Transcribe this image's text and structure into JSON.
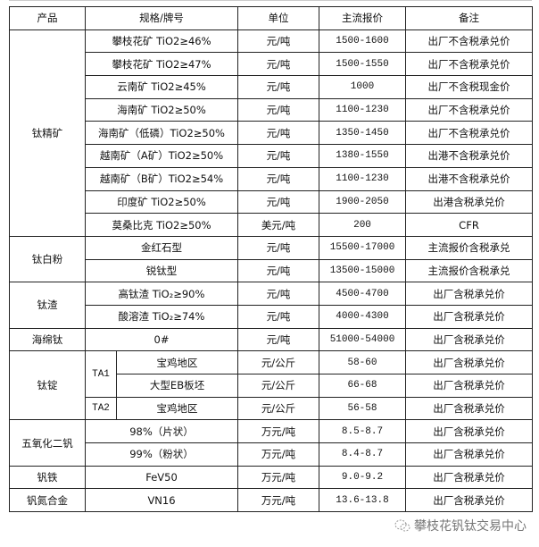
{
  "header": {
    "product": "产品",
    "spec": "规格/牌号",
    "unit": "单位",
    "price": "主流报价",
    "note": "备注"
  },
  "groups": [
    {
      "product": "钛精矿",
      "rows": [
        {
          "spec": "攀枝花矿 TiO2≥46%",
          "unit": "元/吨",
          "price": "1500-1600",
          "note": "出厂不含税承兑价"
        },
        {
          "spec": "攀枝花矿 TiO2≥47%",
          "unit": "元/吨",
          "price": "1500-1550",
          "note": "出厂不含税承兑价"
        },
        {
          "spec": "云南矿 TiO2≥45%",
          "unit": "元/吨",
          "price": "1000",
          "note": "出厂不含税现金价"
        },
        {
          "spec": "海南矿 TiO2≥50%",
          "unit": "元/吨",
          "price": "1100-1230",
          "note": "出厂不含税承兑价"
        },
        {
          "spec": "海南矿（低磷）TiO2≥50%",
          "unit": "元/吨",
          "price": "1350-1450",
          "note": "出厂不含税承兑价"
        },
        {
          "spec": "越南矿（A矿）TiO2≥50%",
          "unit": "元/吨",
          "price": "1380-1550",
          "note": "出港不含税承兑价"
        },
        {
          "spec": "越南矿（B矿）TiO2≥54%",
          "unit": "元/吨",
          "price": "1100-1230",
          "note": "出港不含税承兑价"
        },
        {
          "spec": "印度矿 TiO2≥50%",
          "unit": "元/吨",
          "price": "1900-2050",
          "note": "出港含税承兑价"
        },
        {
          "spec": "莫桑比克 TiO2≥50%",
          "unit": "美元/吨",
          "price": "200",
          "note": "CFR"
        }
      ]
    },
    {
      "product": "钛白粉",
      "rows": [
        {
          "spec": "金红石型",
          "unit": "元/吨",
          "price": "15500-17000",
          "note": "主流报价含税承兑"
        },
        {
          "spec": "锐钛型",
          "unit": "元/吨",
          "price": "13500-15000",
          "note": "主流报价含税承兑"
        }
      ]
    },
    {
      "product": "钛渣",
      "rows": [
        {
          "spec": "高钛渣 TiO₂≥90%",
          "unit": "元/吨",
          "price": "4500-4700",
          "note": "出厂含税承兑价"
        },
        {
          "spec": "酸溶渣 TiO₂≥74%",
          "unit": "元/吨",
          "price": "4000-4300",
          "note": "出厂含税承兑价"
        }
      ]
    },
    {
      "product": "海绵钛",
      "rows": [
        {
          "spec": "0#",
          "unit": "元/吨",
          "price": "51000-54000",
          "note": "出厂含税承兑价"
        }
      ]
    },
    {
      "product": "钛锭",
      "rows": [
        {
          "grade": "TA1",
          "grade_span": 2,
          "spec": "宝鸡地区",
          "unit": "元/公斤",
          "price": "58-60",
          "note": "出厂含税承兑价"
        },
        {
          "spec": "大型EB板坯",
          "unit": "元/公斤",
          "price": "66-68",
          "note": "出厂含税承兑价"
        },
        {
          "grade": "TA2",
          "grade_span": 1,
          "spec": "宝鸡地区",
          "unit": "元/公斤",
          "price": "56-58",
          "note": "出厂含税承兑价"
        }
      ]
    },
    {
      "product": "五氧化二钒",
      "rows": [
        {
          "spec": "98%（片状）",
          "unit": "万元/吨",
          "price": "8.5-8.7",
          "note": "出厂含税承兑价"
        },
        {
          "spec": "99%（粉状）",
          "unit": "万元/吨",
          "price": "8.4-8.7",
          "note": "出厂含税承兑价"
        }
      ]
    },
    {
      "product": "钒铁",
      "rows": [
        {
          "spec": "FeV50",
          "unit": "万元/吨",
          "price": "9.0-9.2",
          "note": "出厂含税承兑价"
        }
      ]
    },
    {
      "product": "钒氮合金",
      "rows": [
        {
          "spec": "VN16",
          "unit": "万元/吨",
          "price": "13.6-13.8",
          "note": "出厂含税承兑价"
        }
      ]
    }
  ],
  "footer": {
    "watermark": "攀枝花钒钛交易中心",
    "icon": "wechat-icon"
  }
}
